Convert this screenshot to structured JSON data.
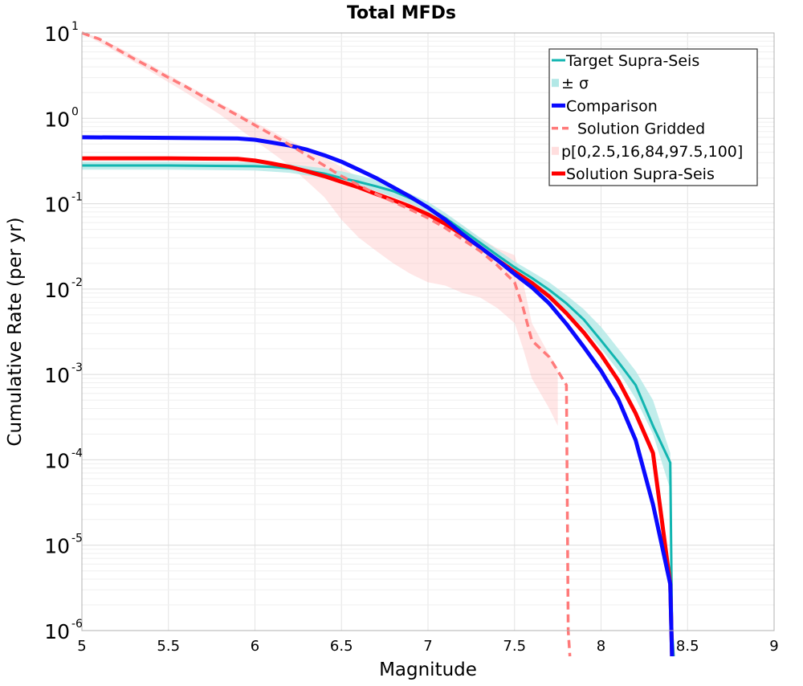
{
  "chart_data": {
    "type": "line",
    "title": "Total MFDs",
    "xlabel": "Magnitude",
    "ylabel": "Cumulative Rate (per yr)",
    "xlim": [
      5,
      9
    ],
    "ylim": [
      1e-06,
      10
    ],
    "yscale": "log",
    "grid": true,
    "legend_position": "top-right",
    "x_ticks": [
      "5",
      "5.5",
      "6",
      "6.5",
      "7",
      "7.5",
      "8",
      "8.5",
      "9"
    ],
    "y_ticks": [
      {
        "base": "10",
        "exp": "-6"
      },
      {
        "base": "10",
        "exp": "-5"
      },
      {
        "base": "10",
        "exp": "-4"
      },
      {
        "base": "10",
        "exp": "-3"
      },
      {
        "base": "10",
        "exp": "-2"
      },
      {
        "base": "10",
        "exp": "-1"
      },
      {
        "base": "10",
        "exp": "0"
      },
      {
        "base": "10",
        "exp": "1"
      }
    ],
    "bands": [
      {
        "name": "p[0,2.5,16,84,97.5,100]",
        "color": "#ffb6b6",
        "x": [
          5.0,
          5.2,
          5.4,
          5.6,
          5.8,
          6.0,
          6.2,
          6.4,
          6.5,
          6.6,
          6.7,
          6.8,
          6.9,
          7.0,
          7.1,
          7.2,
          7.3,
          7.4,
          7.5,
          7.55,
          7.6,
          7.7,
          7.75
        ],
        "lower": [
          10.0,
          6.0,
          3.5,
          2.0,
          1.1,
          0.55,
          0.28,
          0.12,
          0.065,
          0.04,
          0.028,
          0.02,
          0.015,
          0.012,
          0.011,
          0.009,
          0.008,
          0.006,
          0.004,
          0.002,
          0.0009,
          0.0004,
          0.00025
        ],
        "upper": [
          10.5,
          7.0,
          4.2,
          2.5,
          1.5,
          0.9,
          0.55,
          0.35,
          0.27,
          0.2,
          0.16,
          0.13,
          0.11,
          0.09,
          0.075,
          0.055,
          0.04,
          0.03,
          0.025,
          0.012,
          0.004,
          0.0017,
          0.0012
        ]
      },
      {
        "name": "± σ",
        "color": "#b2e8e6",
        "x": [
          5.0,
          5.5,
          6.0,
          6.2,
          6.4,
          6.5,
          6.6,
          6.7,
          6.8,
          6.9,
          7.0,
          7.1,
          7.2,
          7.3,
          7.4,
          7.5,
          7.6,
          7.7,
          7.8,
          7.9,
          8.0,
          8.1,
          8.2,
          8.3,
          8.4
        ],
        "lower": [
          0.25,
          0.25,
          0.245,
          0.23,
          0.2,
          0.18,
          0.16,
          0.14,
          0.12,
          0.1,
          0.08,
          0.058,
          0.042,
          0.03,
          0.021,
          0.015,
          0.011,
          0.008,
          0.0055,
          0.0035,
          0.002,
          0.0011,
          0.00052,
          0.0002,
          4.5e-05
        ],
        "upper": [
          0.31,
          0.31,
          0.305,
          0.29,
          0.26,
          0.24,
          0.215,
          0.19,
          0.16,
          0.13,
          0.105,
          0.078,
          0.056,
          0.04,
          0.029,
          0.021,
          0.016,
          0.012,
          0.0085,
          0.0058,
          0.0036,
          0.002,
          0.0011,
          0.0005,
          0.00012
        ]
      }
    ],
    "series": [
      {
        "name": "Target Supra-Seis",
        "color": "#12b5b0",
        "style": "solid",
        "width": 3,
        "x": [
          5.0,
          5.5,
          6.0,
          6.1,
          6.2,
          6.3,
          6.4,
          6.5,
          6.6,
          6.7,
          6.8,
          6.9,
          7.0,
          7.1,
          7.2,
          7.3,
          7.4,
          7.5,
          7.6,
          7.7,
          7.8,
          7.9,
          8.0,
          8.1,
          8.2,
          8.3,
          8.4,
          8.41,
          8.42
        ],
        "y": [
          0.28,
          0.28,
          0.275,
          0.27,
          0.26,
          0.245,
          0.225,
          0.2,
          0.18,
          0.16,
          0.14,
          0.115,
          0.09,
          0.068,
          0.049,
          0.035,
          0.025,
          0.018,
          0.0135,
          0.0098,
          0.0068,
          0.0044,
          0.0025,
          0.0014,
          0.00075,
          0.00025,
          9.26e-05,
          1e-06,
          5e-07
        ]
      },
      {
        "name": "Comparison",
        "color": "#0a0aff",
        "style": "solid",
        "width": 5,
        "x": [
          5.0,
          5.5,
          5.9,
          6.0,
          6.1,
          6.2,
          6.3,
          6.4,
          6.5,
          6.6,
          6.7,
          6.8,
          6.9,
          7.0,
          7.1,
          7.2,
          7.3,
          7.4,
          7.5,
          7.6,
          7.7,
          7.8,
          7.9,
          8.0,
          8.1,
          8.2,
          8.3,
          8.4,
          8.41
        ],
        "y": [
          0.6,
          0.59,
          0.58,
          0.56,
          0.52,
          0.48,
          0.43,
          0.37,
          0.31,
          0.25,
          0.2,
          0.155,
          0.12,
          0.09,
          0.065,
          0.044,
          0.031,
          0.022,
          0.015,
          0.0105,
          0.0068,
          0.0039,
          0.0021,
          0.0011,
          0.00051,
          0.00017,
          3e-05,
          3.5e-06,
          5e-07
        ]
      },
      {
        "name": "Solution Gridded",
        "color": "#ff7a7a",
        "style": "dashed",
        "width": 3.5,
        "x": [
          5.0,
          5.1,
          5.2,
          5.3,
          5.4,
          5.5,
          5.6,
          5.7,
          5.8,
          5.9,
          6.0,
          6.1,
          6.2,
          6.3,
          6.4,
          6.5,
          6.6,
          6.7,
          6.8,
          6.9,
          7.0,
          7.1,
          7.2,
          7.3,
          7.4,
          7.5,
          7.55,
          7.6,
          7.7,
          7.75,
          7.8,
          7.81,
          7.82
        ],
        "y": [
          10.0,
          8.5,
          6.5,
          5.0,
          3.9,
          3.0,
          2.35,
          1.8,
          1.4,
          1.08,
          0.83,
          0.64,
          0.49,
          0.37,
          0.28,
          0.21,
          0.165,
          0.13,
          0.105,
          0.085,
          0.068,
          0.052,
          0.038,
          0.028,
          0.019,
          0.012,
          0.006,
          0.0025,
          0.0016,
          0.0011,
          0.00075,
          1e-06,
          5e-07
        ]
      },
      {
        "name": "Solution Supra-Seis",
        "color": "#ff0000",
        "style": "solid",
        "width": 5,
        "x": [
          5.0,
          5.5,
          5.9,
          6.0,
          6.1,
          6.2,
          6.3,
          6.4,
          6.5,
          6.6,
          6.7,
          6.8,
          6.9,
          7.0,
          7.1,
          7.2,
          7.3,
          7.4,
          7.5,
          7.6,
          7.7,
          7.8,
          7.9,
          8.0,
          8.1,
          8.2,
          8.3,
          8.4,
          8.41
        ],
        "y": [
          0.34,
          0.34,
          0.335,
          0.32,
          0.295,
          0.27,
          0.24,
          0.21,
          0.18,
          0.155,
          0.13,
          0.11,
          0.092,
          0.075,
          0.058,
          0.043,
          0.031,
          0.022,
          0.016,
          0.0118,
          0.0082,
          0.0052,
          0.0031,
          0.0017,
          0.00085,
          0.00035,
          0.00012,
          3.5e-06,
          5e-07
        ]
      }
    ],
    "legend": [
      {
        "label": "Target Supra-Seis",
        "kind": "line",
        "color": "#12b5b0",
        "width": 3,
        "dash": false
      },
      {
        "label": "± σ",
        "kind": "patch",
        "color": "#b2e8e6"
      },
      {
        "label": "Comparison",
        "kind": "line",
        "color": "#0a0aff",
        "width": 5,
        "dash": false
      },
      {
        "label": "Solution Gridded",
        "kind": "line",
        "color": "#ff7a7a",
        "width": 3.5,
        "dash": true
      },
      {
        "label": "p[0,2.5,16,84,97.5,100]",
        "kind": "patch",
        "color": "#ffdede"
      },
      {
        "label": "Solution Supra-Seis",
        "kind": "line",
        "color": "#ff0000",
        "width": 5,
        "dash": false
      }
    ]
  }
}
